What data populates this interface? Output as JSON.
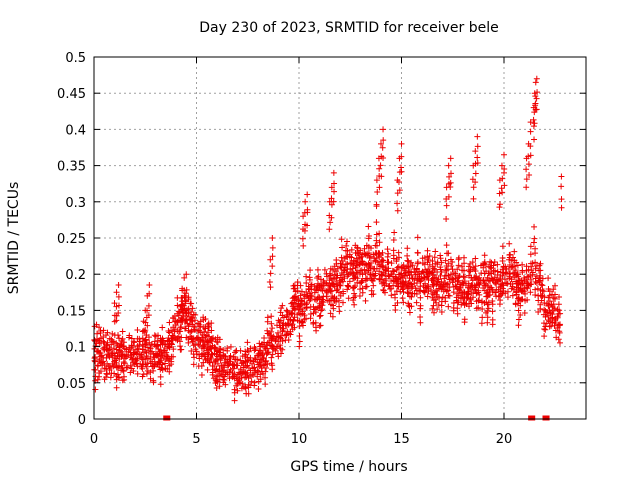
{
  "chart_data": {
    "type": "scatter",
    "title": "Day 230 of 2023, SRMTID for receiver bele",
    "xlabel": "GPS time / hours",
    "ylabel": "SRMTID / TECUs",
    "xlim": [
      0,
      24
    ],
    "ylim": [
      0,
      0.5
    ],
    "xticks": [
      0,
      5,
      10,
      15,
      20
    ],
    "yticks": [
      0,
      0.05,
      0.1,
      0.15,
      0.2,
      0.25,
      0.3,
      0.35,
      0.4,
      0.45,
      0.5
    ],
    "grid": true,
    "marker": "+",
    "color": "#ee0000",
    "series": [
      {
        "name": "SRMTID",
        "trend": {
          "x": [
            0,
            1,
            2,
            3,
            3.5,
            4,
            4.5,
            5,
            6,
            7,
            7.5,
            8,
            8.5,
            9,
            9.5,
            10,
            11,
            12,
            13,
            14,
            15,
            16,
            17,
            18,
            19,
            20,
            21,
            21.5,
            22,
            22.8
          ],
          "y": [
            0.1,
            0.09,
            0.09,
            0.1,
            0.09,
            0.13,
            0.15,
            0.12,
            0.08,
            0.07,
            0.07,
            0.08,
            0.1,
            0.12,
            0.14,
            0.16,
            0.17,
            0.2,
            0.22,
            0.22,
            0.19,
            0.2,
            0.2,
            0.18,
            0.19,
            0.2,
            0.18,
            0.22,
            0.15,
            0.15
          ]
        },
        "spikes": [
          {
            "x": [
              1.0,
              1.1,
              1.2
            ],
            "y": [
              0.16,
              0.175,
              0.185
            ]
          },
          {
            "x": [
              2.5,
              2.6,
              2.7
            ],
            "y": [
              0.15,
              0.17,
              0.185
            ]
          },
          {
            "x": [
              4.3,
              4.4,
              4.5
            ],
            "y": [
              0.18,
              0.195,
              0.2
            ]
          },
          {
            "x": [
              8.6,
              8.7
            ],
            "y": [
              0.22,
              0.25
            ]
          },
          {
            "x": [
              10.2,
              10.3,
              10.4
            ],
            "y": [
              0.28,
              0.3,
              0.31
            ]
          },
          {
            "x": [
              11.5,
              11.6,
              11.7
            ],
            "y": [
              0.3,
              0.32,
              0.34
            ]
          },
          {
            "x": [
              13.8,
              13.9,
              14.0,
              14.1
            ],
            "y": [
              0.33,
              0.36,
              0.38,
              0.4
            ]
          },
          {
            "x": [
              14.8,
              14.9,
              15.0
            ],
            "y": [
              0.33,
              0.36,
              0.38
            ]
          },
          {
            "x": [
              17.2,
              17.3,
              17.4
            ],
            "y": [
              0.32,
              0.35,
              0.36
            ]
          },
          {
            "x": [
              18.5,
              18.6,
              18.7
            ],
            "y": [
              0.35,
              0.37,
              0.39
            ]
          },
          {
            "x": [
              19.8,
              19.9,
              20.0
            ],
            "y": [
              0.33,
              0.35,
              0.365
            ]
          },
          {
            "x": [
              21.1,
              21.2,
              21.3
            ],
            "y": [
              0.36,
              0.38,
              0.41
            ]
          },
          {
            "x": [
              21.45,
              21.5,
              21.55,
              21.6
            ],
            "y": [
              0.43,
              0.45,
              0.465,
              0.47
            ]
          },
          {
            "x": [
              22.8
            ],
            "y": [
              0.335
            ]
          }
        ],
        "zero_markers": {
          "x": [
            3.5,
            3.55,
            3.6,
            21.3,
            21.35,
            21.4,
            22.0,
            22.1
          ],
          "y": 0
        }
      }
    ]
  }
}
